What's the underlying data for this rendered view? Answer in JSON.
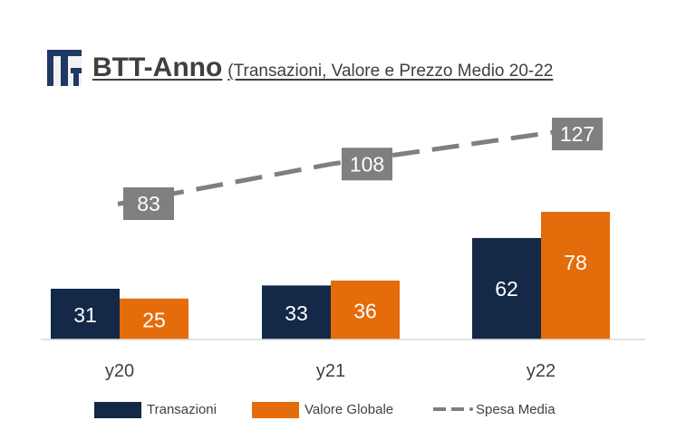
{
  "title": {
    "main": "BTT-Anno",
    "subtitle": "(Transazioni, Valore e Prezzo Medio 20-22"
  },
  "colors": {
    "transazioni": "#142847",
    "valore_globale": "#e46c0a",
    "spesa_media_line": "#7f7f7f",
    "spesa_media_box": "#7f7f7f",
    "axis": "#d9d9d9"
  },
  "logo": {
    "icon": "btt-logo-icon"
  },
  "chart_data": {
    "type": "bar",
    "categories": [
      "y20",
      "y21",
      "y22"
    ],
    "series": [
      {
        "name": "Transazioni",
        "values": [
          31,
          33,
          62
        ]
      },
      {
        "name": "Valore Globale",
        "values": [
          25,
          36,
          78
        ]
      }
    ],
    "line_series": {
      "name": "Spesa Media",
      "values": [
        83,
        108,
        127
      ],
      "style": "dashed"
    },
    "legend_position": "bottom",
    "grid": false
  }
}
